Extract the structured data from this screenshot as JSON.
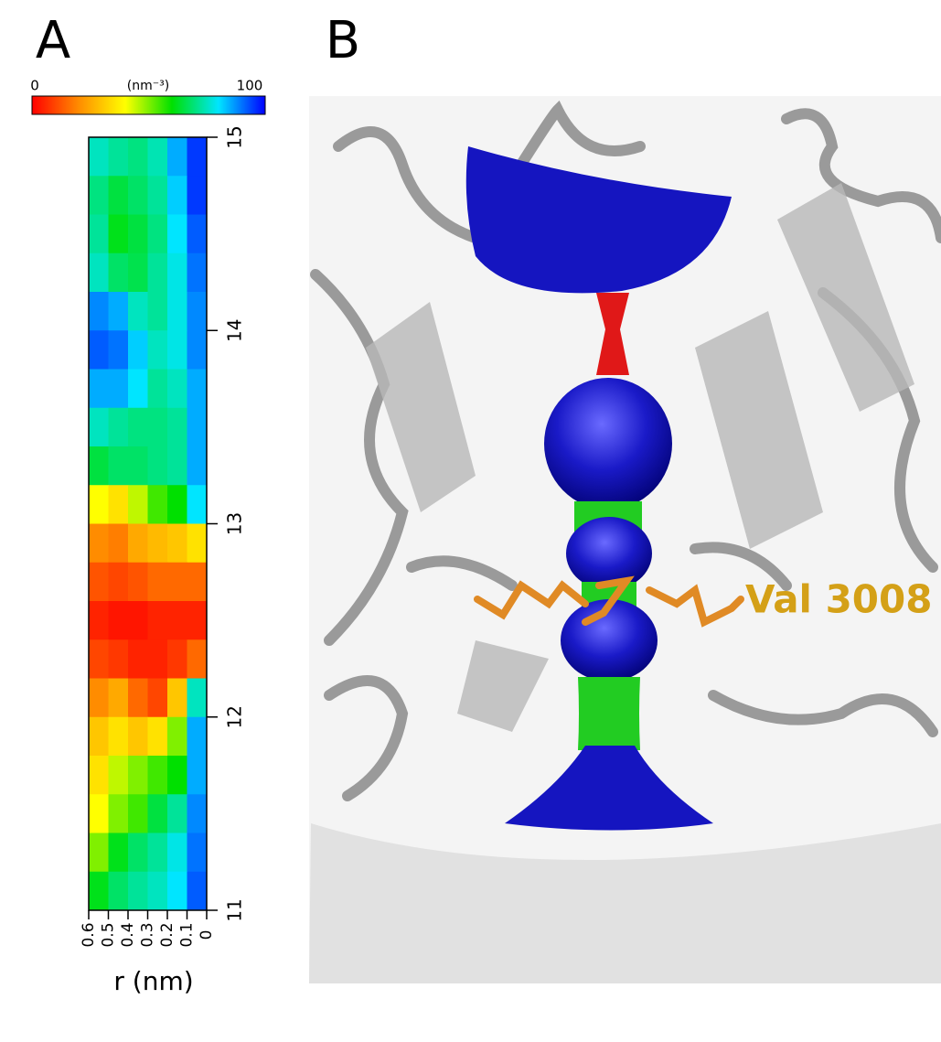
{
  "chart_data": {
    "type": "heatmap",
    "panel_labels": [
      "A",
      "B"
    ],
    "colorbar": {
      "min": 0,
      "max": 100,
      "label": "(nm⁻³)"
    },
    "colormap": [
      "#ff0000",
      "#ff8c00",
      "#ffff00",
      "#00e000",
      "#00e5ff",
      "#0000ff"
    ],
    "xlabel": "r (nm)",
    "xlim": [
      0.6,
      0
    ],
    "xticks": [
      0.6,
      0.5,
      0.4,
      0.3,
      0.2,
      0.1,
      0
    ],
    "ylim": [
      11,
      15
    ],
    "yticks": [
      11,
      12,
      13,
      14,
      15
    ],
    "xbins": [
      0.6,
      0.5,
      0.4,
      0.3,
      0.2,
      0.1,
      0
    ],
    "ybins": [
      15,
      14.8,
      14.6,
      14.4,
      14.2,
      14,
      13.8,
      13.6,
      13.4,
      13.2,
      13,
      12.8,
      12.6,
      12.4,
      12.2,
      12,
      11.8,
      11.6,
      11.4,
      11.2,
      11
    ],
    "values": [
      [
        75,
        72,
        70,
        74,
        85,
        95
      ],
      [
        70,
        65,
        68,
        72,
        82,
        95
      ],
      [
        72,
        62,
        65,
        70,
        80,
        92
      ],
      [
        75,
        68,
        66,
        72,
        78,
        90
      ],
      [
        88,
        85,
        75,
        72,
        78,
        88
      ],
      [
        92,
        90,
        82,
        75,
        78,
        88
      ],
      [
        85,
        85,
        80,
        72,
        75,
        85
      ],
      [
        75,
        72,
        70,
        70,
        72,
        85
      ],
      [
        65,
        68,
        68,
        70,
        72,
        85
      ],
      [
        40,
        35,
        45,
        55,
        60,
        80
      ],
      [
        20,
        18,
        25,
        28,
        30,
        35
      ],
      [
        12,
        10,
        12,
        15,
        15,
        15
      ],
      [
        5,
        3,
        3,
        5,
        5,
        5
      ],
      [
        10,
        8,
        5,
        5,
        8,
        15
      ],
      [
        20,
        25,
        15,
        10,
        30,
        75
      ],
      [
        30,
        35,
        30,
        35,
        50,
        85
      ],
      [
        35,
        45,
        50,
        55,
        60,
        85
      ],
      [
        40,
        50,
        55,
        65,
        72,
        88
      ],
      [
        50,
        62,
        68,
        72,
        78,
        90
      ],
      [
        62,
        68,
        72,
        75,
        80,
        92
      ]
    ],
    "annotation": "Val 3008"
  }
}
